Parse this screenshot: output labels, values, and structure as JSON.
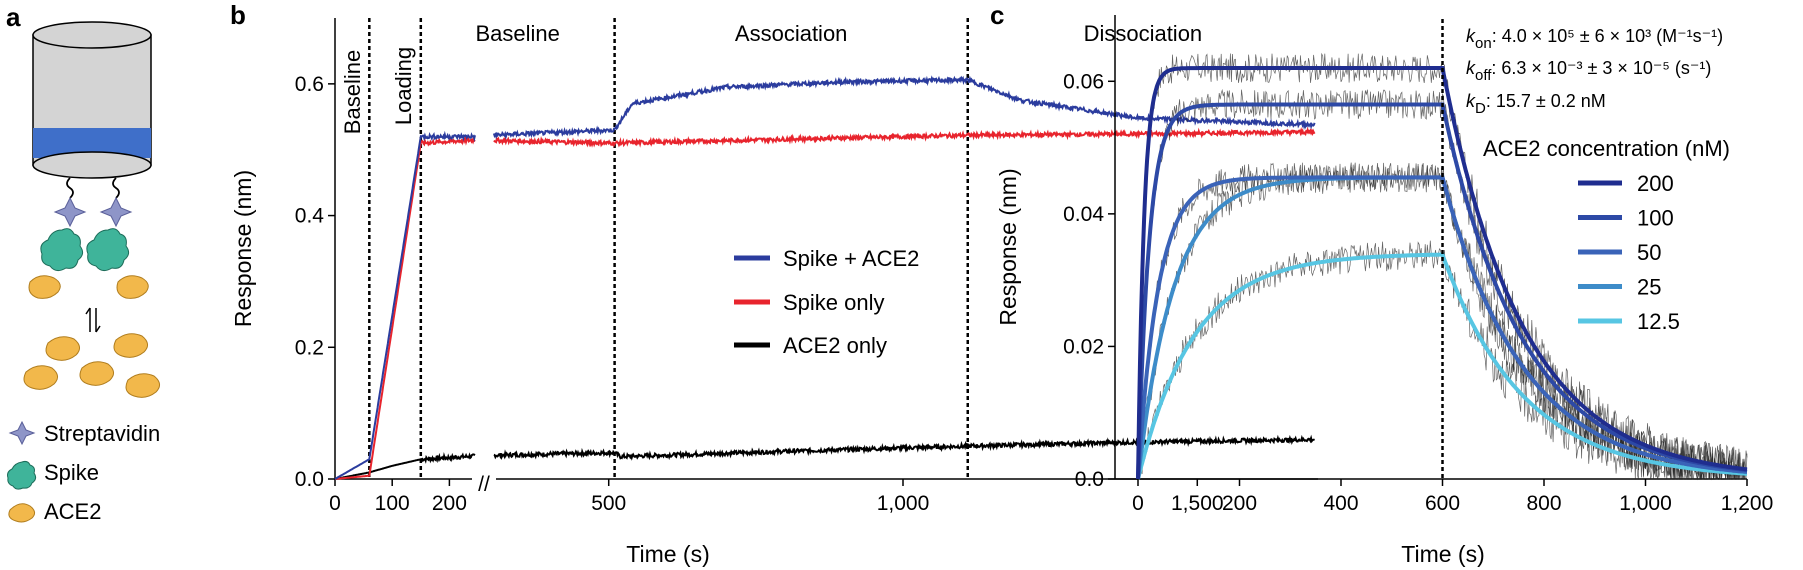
{
  "panels": {
    "a": {
      "letter": "a",
      "legend": [
        {
          "name": "streptavidin",
          "label": "Streptavidin"
        },
        {
          "name": "spike",
          "label": "Spike"
        },
        {
          "name": "ace2",
          "label": "ACE2"
        }
      ],
      "colors": {
        "sensor": "#d4d4d4",
        "band": "#3f6fc9",
        "streptavidin": "#8e95c8",
        "spike": "#3fb49a",
        "ace2": "#f2b84b"
      }
    },
    "b": {
      "letter": "b"
    },
    "c": {
      "letter": "c"
    }
  },
  "chart_data": [
    {
      "type": "line",
      "panel": "b",
      "xlabel": "Time (s)",
      "ylabel": "Response (nm)",
      "ylim": [
        0,
        0.7
      ],
      "yticks": [
        "0.0",
        "0.2",
        "0.4",
        "0.6"
      ],
      "xticks": [
        "0",
        "100",
        "200",
        "500",
        "1,000",
        "1,500"
      ],
      "axis_break_label": "//",
      "phases": [
        "Baseline",
        "Loading",
        "Baseline",
        "Association",
        "Dissociation"
      ],
      "phase_boundaries_s": [
        60,
        150,
        510,
        1110
      ],
      "series": [
        {
          "name": "Spike + ACE2",
          "color": "#2b3c9e",
          "points": [
            [
              0,
              0.0
            ],
            [
              60,
              0.03
            ],
            [
              150,
              0.52
            ],
            [
              250,
              0.52
            ],
            [
              510,
              0.53
            ],
            [
              540,
              0.57
            ],
            [
              700,
              0.595
            ],
            [
              900,
              0.603
            ],
            [
              1110,
              0.606
            ],
            [
              1200,
              0.575
            ],
            [
              1400,
              0.548
            ],
            [
              1700,
              0.538
            ]
          ]
        },
        {
          "name": "Spike only",
          "color": "#e8242d",
          "points": [
            [
              0,
              0.0
            ],
            [
              60,
              0.005
            ],
            [
              150,
              0.51
            ],
            [
              250,
              0.515
            ],
            [
              510,
              0.51
            ],
            [
              800,
              0.516
            ],
            [
              1110,
              0.522
            ],
            [
              1400,
              0.524
            ],
            [
              1700,
              0.527
            ]
          ]
        },
        {
          "name": "ACE2 only",
          "color": "#000000",
          "points": [
            [
              0,
              0.0
            ],
            [
              60,
              0.01
            ],
            [
              100,
              0.02
            ],
            [
              150,
              0.03
            ],
            [
              250,
              0.035
            ],
            [
              510,
              0.04
            ],
            [
              520,
              0.034
            ],
            [
              800,
              0.042
            ],
            [
              1110,
              0.05
            ],
            [
              1400,
              0.056
            ],
            [
              1700,
              0.06
            ]
          ]
        }
      ]
    },
    {
      "type": "line",
      "panel": "c",
      "xlabel": "Time (s)",
      "ylabel": "Response (nm)",
      "xlim": [
        0,
        1200
      ],
      "ylim": [
        0,
        0.07
      ],
      "yticks": [
        "0.0",
        "0.02",
        "0.04",
        "0.06"
      ],
      "xticks": [
        "0",
        "200",
        "400",
        "600",
        "800",
        "1,000",
        "1,200"
      ],
      "dissociation_start_s": 600,
      "legend_title": "ACE2 concentration (nM)",
      "kinetics": {
        "kon_label": "k",
        "kon_sub": "on",
        "kon_value": ": 4.0 × 10⁵ ± 6 × 10³ (M⁻¹s⁻¹)",
        "koff_label": "k",
        "koff_sub": "off",
        "koff_value": ": 6.3 × 10⁻³ ± 3 × 10⁻⁵ (s⁻¹)",
        "kd_label": "k",
        "kd_sub": "D",
        "kd_value": ": 15.7 ± 0.2 nM"
      },
      "series": [
        {
          "name": "200",
          "color": "#1f2d8f",
          "plateau": 0.062,
          "tau_assoc": 12,
          "tau_dissoc": 160
        },
        {
          "name": "100",
          "color": "#2d49a6",
          "plateau": 0.0565,
          "tau_assoc": 22,
          "tau_dissoc": 160
        },
        {
          "name": "50",
          "color": "#3a63b8",
          "plateau": 0.0455,
          "tau_assoc": 40,
          "tau_dissoc": 160
        },
        {
          "name": "25",
          "color": "#3d8cc9",
          "plateau": 0.0455,
          "tau_assoc": 70,
          "tau_dissoc": 160
        },
        {
          "name": "12.5",
          "color": "#57c6e3",
          "plateau": 0.034,
          "tau_assoc": 110,
          "tau_dissoc": 160
        }
      ]
    }
  ]
}
